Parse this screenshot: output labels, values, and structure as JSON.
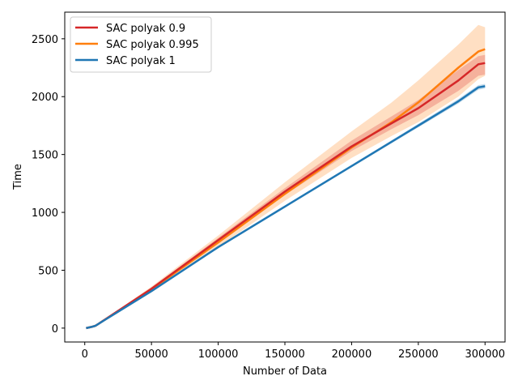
{
  "chart_data": {
    "type": "line",
    "xlabel": "Number of Data",
    "ylabel": "Time",
    "xlim": [
      -15000,
      315000
    ],
    "ylim": [
      -120,
      2730
    ],
    "xticks": [
      0,
      50000,
      100000,
      150000,
      200000,
      250000,
      300000
    ],
    "yticks": [
      0,
      500,
      1000,
      1500,
      2000,
      2500
    ],
    "grid": false,
    "legend_position": "top-left",
    "series": [
      {
        "name": "SAC polyak 0.9",
        "color": "#d62728",
        "x": [
          1000,
          5000,
          8000,
          10000,
          50000,
          100000,
          150000,
          200000,
          230000,
          250000,
          280000,
          295000,
          300000
        ],
        "y": [
          0,
          10,
          20,
          35,
          340,
          760,
          1180,
          1570,
          1770,
          1900,
          2140,
          2280,
          2290
        ],
        "lower": [
          0,
          10,
          20,
          35,
          330,
          740,
          1150,
          1530,
          1720,
          1840,
          2050,
          2180,
          2190
        ],
        "upper": [
          0,
          10,
          20,
          35,
          350,
          780,
          1210,
          1620,
          1830,
          1970,
          2230,
          2350,
          2360
        ]
      },
      {
        "name": "SAC polyak 0.995",
        "color": "#ff7f0e",
        "x": [
          1000,
          5000,
          8000,
          10000,
          50000,
          100000,
          150000,
          200000,
          230000,
          250000,
          280000,
          295000,
          300000
        ],
        "y": [
          0,
          10,
          20,
          35,
          335,
          740,
          1160,
          1560,
          1780,
          1950,
          2250,
          2390,
          2410
        ],
        "lower": [
          0,
          10,
          20,
          35,
          310,
          700,
          1100,
          1470,
          1660,
          1780,
          2000,
          2150,
          2180
        ],
        "upper": [
          0,
          10,
          20,
          35,
          360,
          800,
          1260,
          1700,
          1950,
          2140,
          2450,
          2620,
          2600
        ]
      },
      {
        "name": "SAC polyak 1",
        "color": "#1f77b4",
        "x": [
          1000,
          5000,
          8000,
          10000,
          50000,
          100000,
          150000,
          200000,
          250000,
          280000,
          295000,
          300000
        ],
        "y": [
          0,
          10,
          20,
          35,
          320,
          700,
          1050,
          1400,
          1750,
          1960,
          2080,
          2090
        ],
        "lower": [
          0,
          10,
          20,
          35,
          315,
          690,
          1040,
          1390,
          1735,
          1940,
          2060,
          2070
        ],
        "upper": [
          0,
          10,
          20,
          35,
          325,
          710,
          1060,
          1410,
          1765,
          1980,
          2100,
          2110
        ]
      }
    ]
  }
}
